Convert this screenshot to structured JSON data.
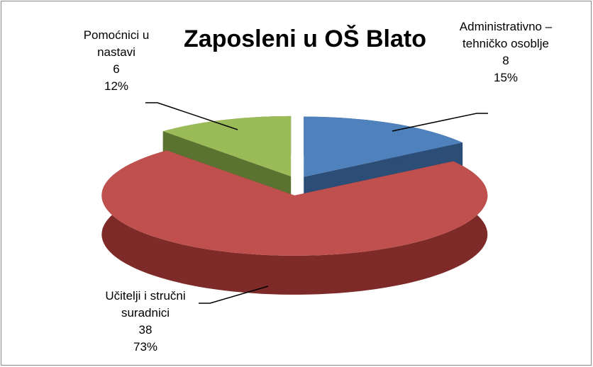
{
  "chart_data": {
    "type": "pie",
    "title": "Zaposleni u OŠ Blato",
    "categories": [
      "Administrativno – tehničko osoblje",
      "Učitelji i stručni suradnici",
      "Pomoćnici u nastavi"
    ],
    "values": [
      8,
      38,
      6
    ],
    "percent_labels": [
      "15%",
      "73%",
      "12%"
    ],
    "colors": [
      "#4f81bd",
      "#c0504d",
      "#9bbb59"
    ],
    "side_colors": [
      "#2c4d75",
      "#7d2a28",
      "#5a7330"
    ]
  }
}
